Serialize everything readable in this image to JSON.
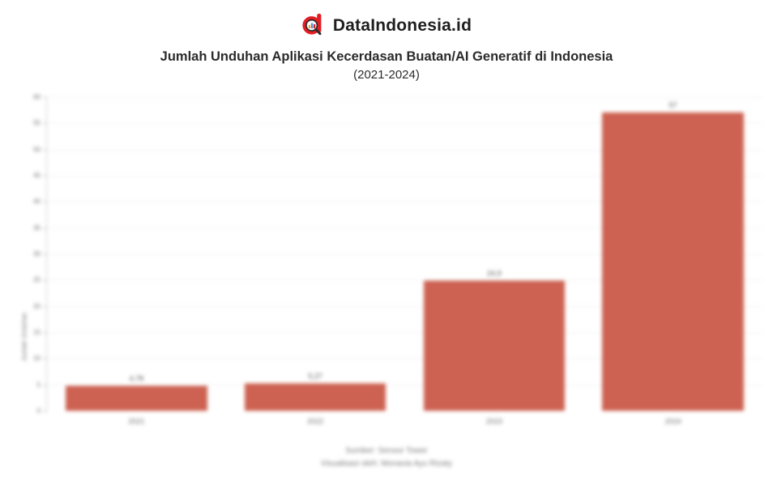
{
  "header": {
    "brand": "DataIndonesia.id"
  },
  "title": "Jumlah Unduhan Aplikasi Kecerdasan Buatan/AI Generatif di Indonesia",
  "subtitle": "(2021-2024)",
  "chart_data": {
    "type": "bar",
    "categories": [
      "2021",
      "2022",
      "2023",
      "2024"
    ],
    "values": [
      4.78,
      5.27,
      24.9,
      57
    ],
    "value_labels": [
      "4,78",
      "5,27",
      "24,9",
      "57"
    ],
    "title": "Jumlah Unduhan Aplikasi Kecerdasan Buatan/AI Generatif di Indonesia (2021-2024)",
    "xlabel": "",
    "ylabel": "Jumlah Unduhan",
    "ylim": [
      0,
      60
    ],
    "ytick_step": 5,
    "grid": true,
    "legend_position": "none",
    "bar_color": "#CD6252"
  },
  "colors": {
    "bar": "#CD6252",
    "brand_red": "#E31E24",
    "title_text": "#2b2b2b",
    "axis_text": "#6f6f6f",
    "footer_text": "#7d7d7d"
  },
  "footer": {
    "source": "Sumber: Sensor Tower",
    "credit": "Visualisasi oleh: Monavia Ayu Rizaty"
  }
}
